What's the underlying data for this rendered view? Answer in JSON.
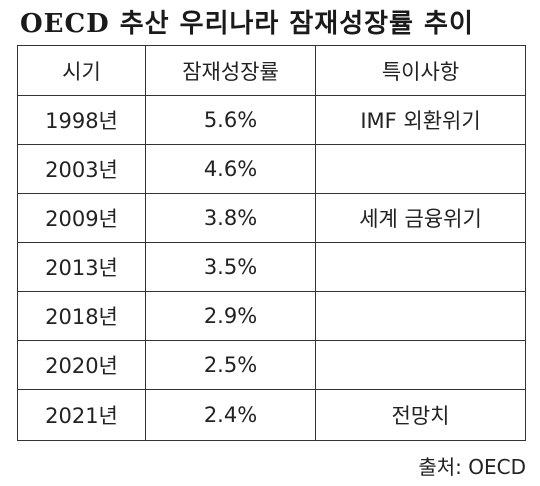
{
  "title": "OECD 추산 우리나라 잠재성장률 추이",
  "table": {
    "headers": [
      "시기",
      "잠재성장률",
      "특이사항"
    ],
    "rows": [
      [
        "1998년",
        "5.6%",
        "IMF 외환위기"
      ],
      [
        "2003년",
        "4.6%",
        ""
      ],
      [
        "2009년",
        "3.8%",
        "세계 금융위기"
      ],
      [
        "2013년",
        "3.5%",
        ""
      ],
      [
        "2018년",
        "2.9%",
        ""
      ],
      [
        "2020년",
        "2.5%",
        ""
      ],
      [
        "2021년",
        "2.4%",
        "전망치"
      ]
    ]
  },
  "source": "출처: OECD"
}
